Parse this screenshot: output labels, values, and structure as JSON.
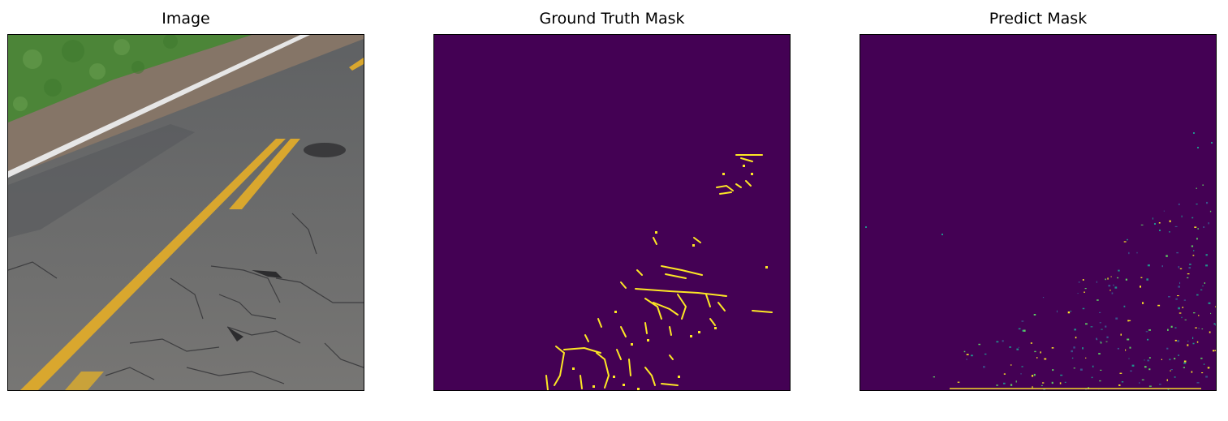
{
  "figure": {
    "panels": [
      {
        "title": "Image",
        "content": "road-photo"
      },
      {
        "title": "Ground Truth Mask",
        "content": "binary-mask"
      },
      {
        "title": "Predict Mask",
        "content": "binary-mask"
      }
    ]
  },
  "colors": {
    "mask_background": "#440154",
    "mask_crack": "#fde725",
    "mask_mid": "#21918c",
    "asphalt": "#6f6f6d",
    "grass": "#4f8a3a",
    "road_shoulder": "#8a7a6e",
    "lane_line": "#e0b030",
    "edge_line": "#e6e6e6"
  }
}
